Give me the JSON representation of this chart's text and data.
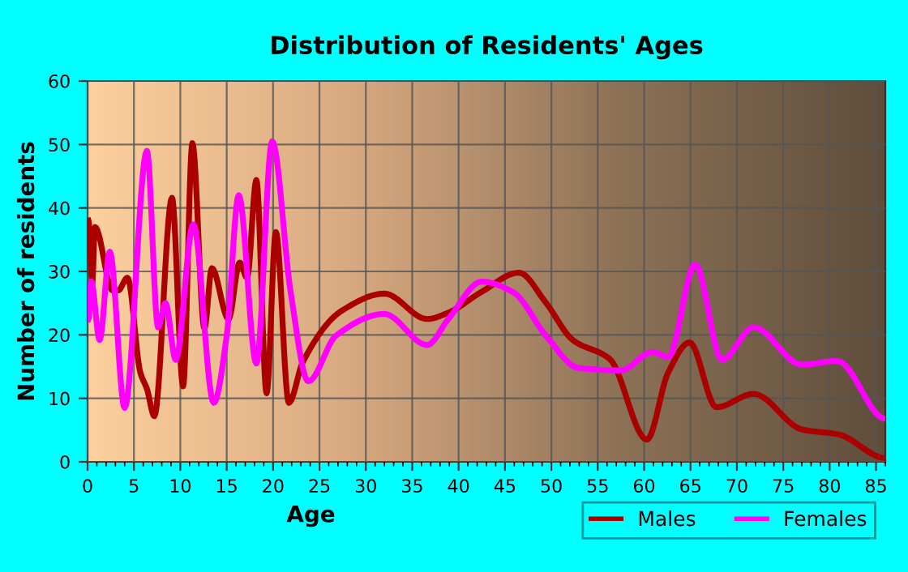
{
  "chart_data": {
    "type": "line",
    "title": "Distribution of Residents' Ages",
    "xlabel": "Age",
    "ylabel": "Number of residents",
    "xlim": [
      0,
      86
    ],
    "xticks": [
      0,
      5,
      10,
      15,
      20,
      25,
      30,
      35,
      40,
      45,
      50,
      55,
      60,
      65,
      70,
      75,
      80,
      85
    ],
    "ylim": [
      0,
      60
    ],
    "yticks": [
      0,
      10,
      20,
      30,
      40,
      50,
      60
    ],
    "grid": true,
    "legend": "bottom right",
    "line_style": "solid",
    "marker": "none",
    "series": [
      {
        "name": "Males",
        "color": "#aa0000",
        "x": [
          0.1,
          0.5,
          0.8,
          2.7,
          3.3,
          4.3,
          5.7,
          6.4,
          7.2,
          9.1,
          10.3,
          11.3,
          12.6,
          13.4,
          15.2,
          16.4,
          17.2,
          18.2,
          19.3,
          20.3,
          21.7,
          23.2,
          27.4,
          32,
          36.6,
          38.9,
          42.5,
          46.5,
          49.4,
          52.3,
          56.3,
          60.3,
          62.6,
          64.9,
          67.8,
          71.8,
          77,
          81,
          86
        ],
        "values": [
          38,
          28,
          37,
          27,
          27,
          29,
          14,
          11.5,
          7.2,
          41.6,
          11.9,
          50.2,
          21,
          30.5,
          22.5,
          31.4,
          29,
          44.4,
          10.8,
          36.2,
          9.3,
          15.7,
          23.8,
          26.5,
          22.5,
          23.5,
          26.8,
          29.8,
          25.1,
          19.2,
          16.2,
          3.5,
          14.1,
          18.8,
          8.6,
          10.7,
          5.1,
          4.3,
          0.6
        ]
      },
      {
        "name": "Females",
        "color": "#ff00ff",
        "x": [
          0.1,
          0.4,
          1.3,
          2.4,
          4,
          6.4,
          7.6,
          8.4,
          9.5,
          11.4,
          13.6,
          15,
          16.3,
          18.2,
          19.9,
          21.9,
          23.8,
          26.8,
          32,
          36.6,
          38.9,
          42.5,
          45.9,
          49.4,
          52.9,
          57.5,
          60.9,
          62.6,
          65.5,
          68.4,
          71.8,
          77,
          80.8,
          86
        ],
        "values": [
          22.5,
          28.4,
          19.2,
          33.1,
          8.5,
          49,
          21.2,
          25,
          16.1,
          37.4,
          9.3,
          19.9,
          42,
          15.5,
          50.5,
          26.7,
          12.7,
          19.9,
          23.3,
          18.4,
          22.5,
          28.4,
          26.7,
          19.9,
          14.8,
          14.4,
          17.3,
          16.5,
          31.1,
          16.1,
          21.2,
          15.3,
          15.9,
          6.8
        ]
      }
    ]
  }
}
